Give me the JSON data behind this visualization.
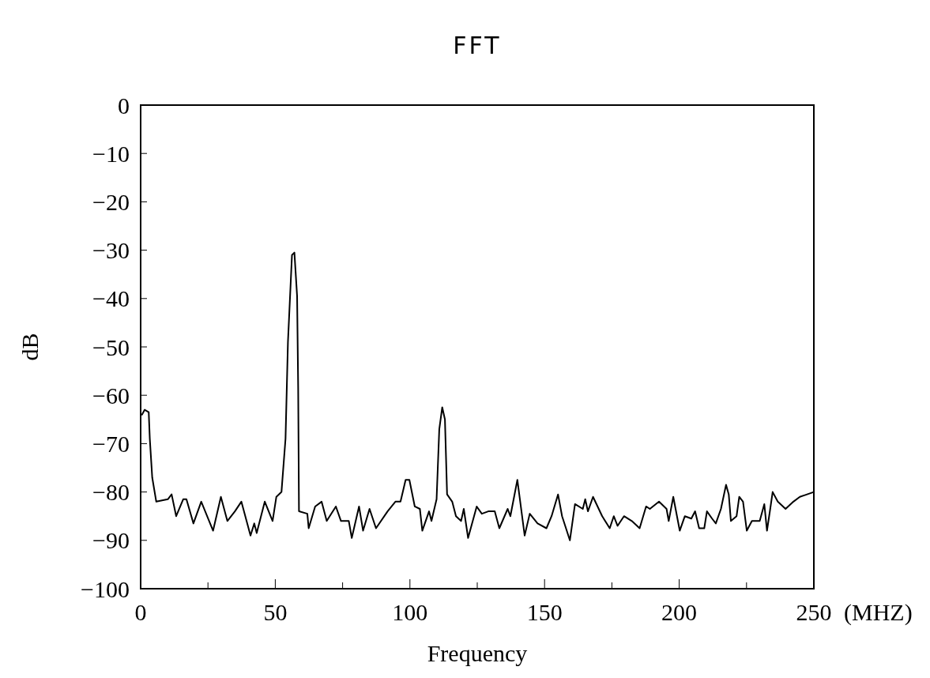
{
  "chart_data": {
    "type": "line",
    "title": "FFT",
    "xlabel": "Frequency",
    "ylabel": "dB",
    "annotations": [
      "(MHZ)"
    ],
    "xlim": [
      0,
      250
    ],
    "xticks": [
      0,
      {
        "value": 25,
        "label": null
      },
      50,
      {
        "value": 75,
        "label": null
      },
      100,
      {
        "value": 125,
        "label": null
      },
      150,
      {
        "value": 175,
        "label": null
      },
      200,
      {
        "value": 225,
        "label": null
      },
      250
    ],
    "ylim": [
      -100,
      0
    ],
    "yticks": [
      -100,
      -90,
      -80,
      -70,
      -60,
      -50,
      -40,
      -30,
      -20,
      -10,
      0
    ],
    "grid": false,
    "marker": "none",
    "line_style": "solid",
    "series": [
      {
        "color": "#000000",
        "x": [
          0.5,
          1.5,
          3,
          3.4,
          4.3,
          5.8,
          10.1,
          11.5,
          13.2,
          15.8,
          17,
          19.6,
          22.5,
          26.9,
          29.8,
          32.2,
          35,
          37.4,
          40.8,
          42.2,
          43.1,
          46.1,
          49,
          50.4,
          52.3,
          53.8,
          54.7,
          56.2,
          57.1,
          58.1,
          58.5,
          58.8,
          61.9,
          62.4,
          64.8,
          67.2,
          69.1,
          72.5,
          74.4,
          77.3,
          78.4,
          81.1,
          82.6,
          85,
          87.4,
          91.7,
          94.6,
          96.5,
          98.4,
          99.8,
          101.8,
          103.7,
          104.6,
          107.1,
          108,
          109.9,
          110.9,
          112,
          113,
          113.8,
          115.7,
          117.1,
          119,
          120,
          121.6,
          124.8,
          126.7,
          129.1,
          131.5,
          133.2,
          136.3,
          137.3,
          139.9,
          142.6,
          144.5,
          147.4,
          150.7,
          152.6,
          155,
          156.5,
          159.4,
          161.3,
          164.2,
          165.1,
          166.1,
          168,
          171.4,
          174.2,
          175.7,
          177.1,
          179.5,
          182.4,
          185.3,
          187.7,
          189.1,
          192.5,
          195.3,
          196.1,
          197.8,
          200.2,
          202.1,
          204.5,
          205.9,
          207.4,
          209.3,
          210.3,
          212.2,
          213.6,
          215.5,
          217.4,
          218.4,
          219.2,
          221.3,
          222.3,
          223.7,
          225.1,
          227,
          229.9,
          231.6,
          232.6,
          233.8,
          234.7,
          236.6,
          239.5,
          242.4,
          244.8,
          250
        ],
        "values": [
          -64,
          -63,
          -63.5,
          -69,
          -77,
          -82,
          -81.5,
          -80.5,
          -85,
          -81.5,
          -81.5,
          -86.5,
          -82,
          -88,
          -81,
          -86,
          -84,
          -82,
          -89,
          -86.5,
          -88.5,
          -82,
          -86,
          -81,
          -80,
          -69,
          -49,
          -31,
          -30.5,
          -39.5,
          -58.5,
          -84,
          -84.5,
          -87.5,
          -83,
          -82,
          -86,
          -83,
          -86,
          -86,
          -89.5,
          -83,
          -88,
          -83.5,
          -87.5,
          -84,
          -82,
          -82,
          -77.5,
          -77.5,
          -83,
          -83.5,
          -88,
          -84,
          -86,
          -81.5,
          -67,
          -62.5,
          -65,
          -80.5,
          -82,
          -85,
          -86,
          -83.5,
          -89.5,
          -83,
          -84.5,
          -84,
          -84,
          -87.5,
          -83.5,
          -85,
          -77.5,
          -89,
          -84.5,
          -86.5,
          -87.5,
          -85,
          -80.5,
          -85,
          -90,
          -82.5,
          -83.5,
          -81.5,
          -84,
          -81,
          -85,
          -87.5,
          -85,
          -87,
          -85,
          -86,
          -87.5,
          -83,
          -83.5,
          -82,
          -83.5,
          -86,
          -81,
          -88,
          -85,
          -85.5,
          -84,
          -87.5,
          -87.5,
          -84,
          -85.5,
          -86.5,
          -83.5,
          -78.5,
          -80.5,
          -86,
          -85,
          -81,
          -82,
          -88,
          -86,
          -86,
          -82.5,
          -88,
          -83.5,
          -80,
          -82,
          -83.5,
          -82,
          -81,
          -80
        ]
      }
    ]
  }
}
